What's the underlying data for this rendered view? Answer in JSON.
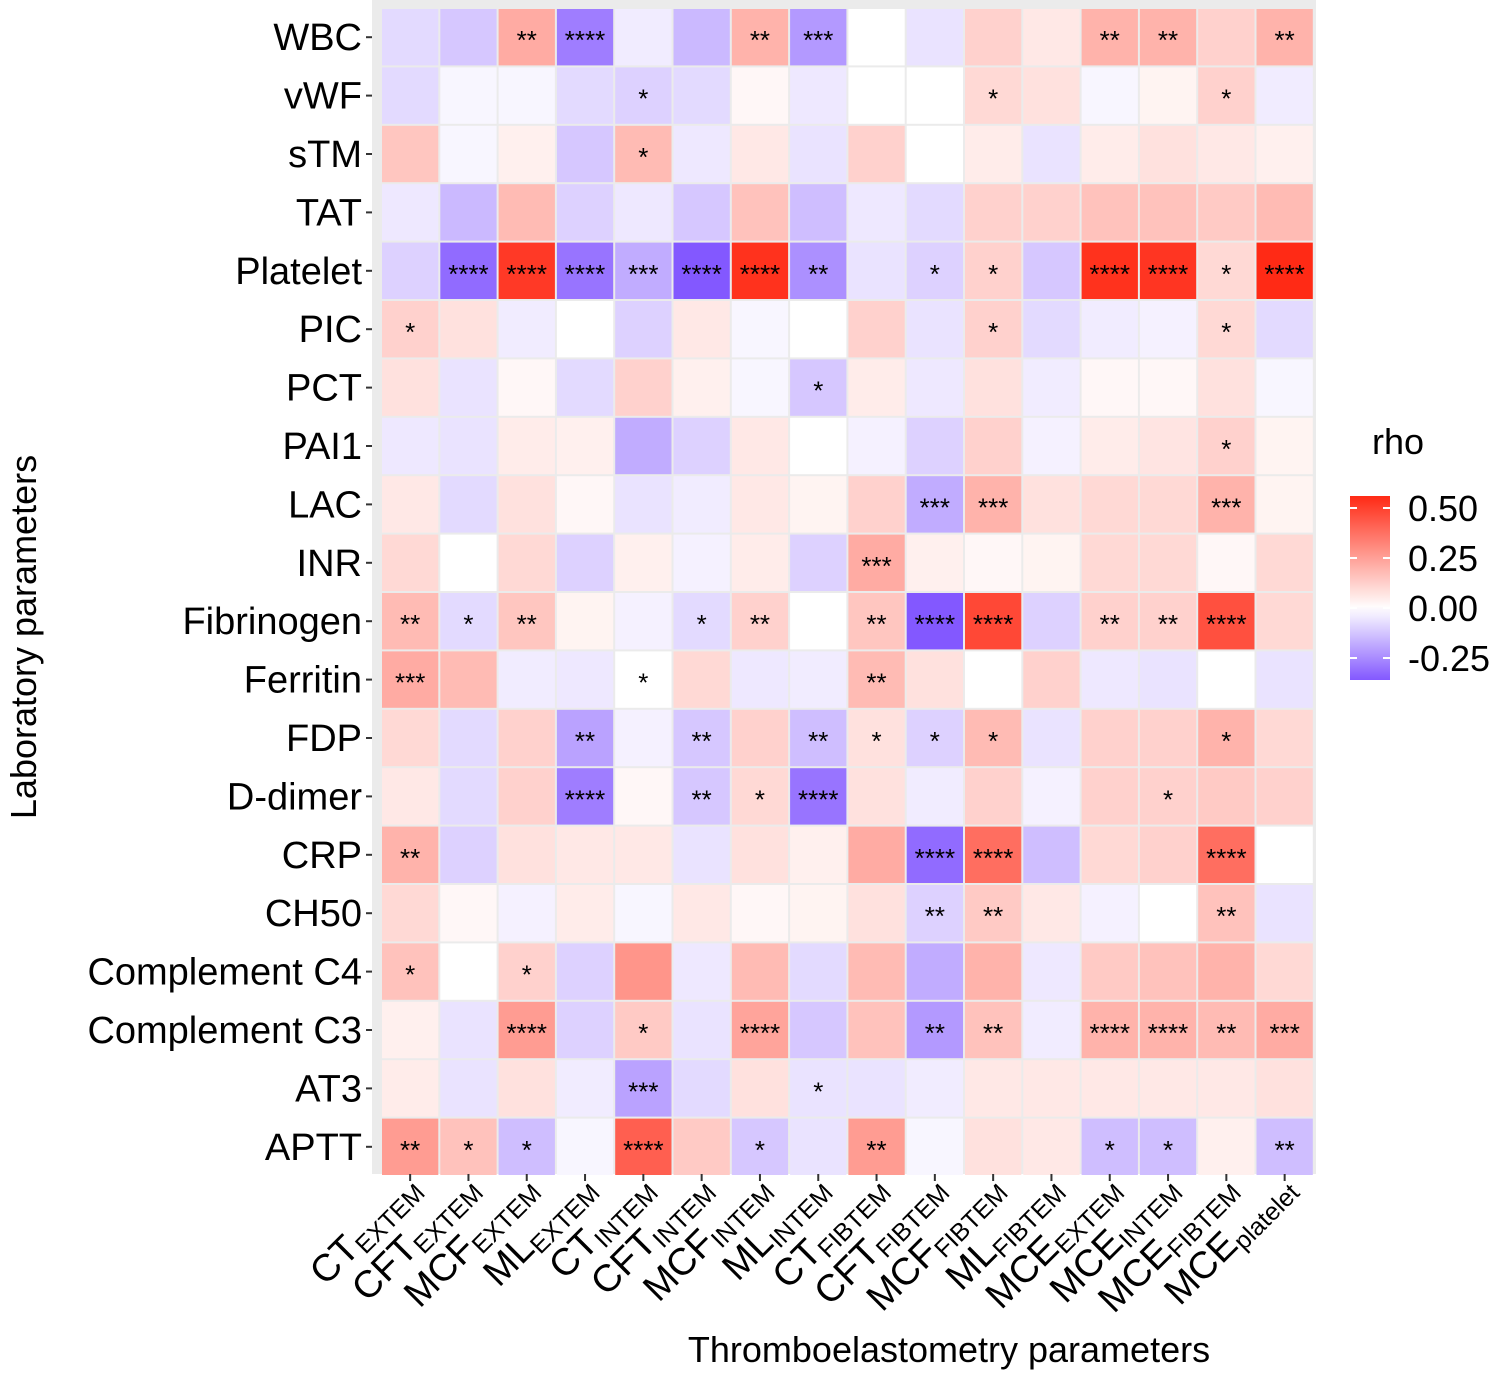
{
  "chart_data": {
    "type": "heatmap",
    "xlabel": "Thromboelastometry parameters",
    "ylabel": "Laboratory parameters",
    "legend": {
      "title": "rho",
      "breaks": [
        0.5,
        0.25,
        0.0,
        -0.25
      ],
      "labels": [
        "0.50",
        "0.25",
        "0.00",
        "-0.25"
      ],
      "limits": [
        -0.36,
        0.56
      ],
      "low_color": "#8358FF",
      "mid_color": "#FFFFFF",
      "high_color": "#FF2A15",
      "position": "right"
    },
    "columns": [
      {
        "main": "CT",
        "sub": "EXTEM"
      },
      {
        "main": "CFT",
        "sub": "EXTEM"
      },
      {
        "main": "MCF",
        "sub": "EXTEM"
      },
      {
        "main": "ML",
        "sub": "EXTEM"
      },
      {
        "main": "CT",
        "sub": "INTEM"
      },
      {
        "main": "CFT",
        "sub": "INTEM"
      },
      {
        "main": "MCF",
        "sub": "INTEM"
      },
      {
        "main": "ML",
        "sub": "INTEM"
      },
      {
        "main": "CT",
        "sub": "FIBTEM"
      },
      {
        "main": "CFT",
        "sub": "FIBTEM"
      },
      {
        "main": "MCF",
        "sub": "FIBTEM"
      },
      {
        "main": "ML",
        "sub": "FIBTEM"
      },
      {
        "main": "MCE",
        "sub": "EXTEM"
      },
      {
        "main": "MCE",
        "sub": "INTEM"
      },
      {
        "main": "MCE",
        "sub": "FIBTEM"
      },
      {
        "main": "MCE",
        "sub": "platelet"
      }
    ],
    "rows": [
      {
        "label": "WBC",
        "values": [
          -0.08,
          -0.12,
          0.22,
          -0.28,
          -0.04,
          -0.15,
          0.2,
          -0.22,
          0.0,
          -0.06,
          0.12,
          0.06,
          0.2,
          0.2,
          0.12,
          0.2
        ],
        "sig": [
          "",
          "",
          "**",
          "****",
          "",
          "",
          "**",
          "***",
          "",
          "",
          "",
          "",
          "**",
          "**",
          "",
          "**"
        ]
      },
      {
        "label": "vWF",
        "values": [
          -0.08,
          -0.02,
          -0.02,
          -0.08,
          -0.1,
          -0.08,
          0.02,
          -0.05,
          0.0,
          0.0,
          0.1,
          0.08,
          -0.02,
          0.03,
          0.12,
          -0.04
        ]
      },
      {
        "label": "sTM",
        "values": [
          0.15,
          -0.02,
          0.04,
          -0.12,
          0.18,
          -0.05,
          0.06,
          -0.06,
          0.12,
          0.0,
          0.05,
          -0.06,
          0.05,
          0.08,
          0.06,
          0.04
        ]
      },
      {
        "label": "TAT",
        "values": [
          -0.05,
          -0.15,
          0.18,
          -0.1,
          -0.05,
          -0.12,
          0.16,
          -0.14,
          -0.05,
          -0.08,
          0.12,
          0.12,
          0.16,
          0.16,
          0.14,
          0.18
        ]
      },
      {
        "label": "Platelet",
        "values": [
          -0.1,
          -0.32,
          0.52,
          -0.3,
          -0.18,
          -0.36,
          0.54,
          -0.24,
          -0.06,
          -0.1,
          0.12,
          -0.12,
          0.54,
          0.53,
          0.1,
          0.56
        ]
      },
      {
        "label": "PIC",
        "values": [
          0.12,
          0.08,
          -0.04,
          0.0,
          -0.1,
          0.06,
          -0.02,
          0.0,
          0.12,
          -0.06,
          0.12,
          -0.08,
          -0.04,
          -0.03,
          0.1,
          -0.08
        ]
      },
      {
        "label": "PCT",
        "values": [
          0.08,
          -0.06,
          0.02,
          -0.08,
          0.12,
          0.04,
          -0.02,
          -0.12,
          0.05,
          -0.05,
          0.08,
          -0.04,
          0.02,
          0.02,
          0.08,
          -0.02
        ]
      },
      {
        "label": "PAI1",
        "values": [
          -0.05,
          -0.06,
          0.05,
          0.04,
          -0.18,
          -0.1,
          0.06,
          0.0,
          -0.03,
          -0.1,
          0.12,
          -0.03,
          0.05,
          0.07,
          0.12,
          0.03
        ]
      },
      {
        "label": "LAC",
        "values": [
          0.06,
          -0.08,
          0.08,
          0.02,
          -0.06,
          -0.04,
          0.06,
          0.03,
          0.12,
          -0.18,
          0.2,
          0.08,
          0.1,
          0.1,
          0.2,
          0.03
        ]
      },
      {
        "label": "INR",
        "values": [
          0.1,
          0.0,
          0.1,
          -0.1,
          0.04,
          -0.03,
          0.05,
          -0.1,
          0.22,
          0.04,
          0.02,
          0.03,
          0.1,
          0.1,
          0.02,
          0.1
        ]
      },
      {
        "label": "Fibrinogen",
        "values": [
          0.18,
          -0.08,
          0.15,
          0.03,
          -0.03,
          -0.08,
          0.12,
          0.0,
          0.15,
          -0.36,
          0.48,
          -0.1,
          0.12,
          0.12,
          0.46,
          0.1
        ]
      },
      {
        "label": "Ferritin",
        "values": [
          0.22,
          0.18,
          -0.04,
          -0.05,
          0.0,
          0.1,
          -0.05,
          -0.04,
          0.18,
          0.08,
          0.0,
          0.12,
          -0.05,
          -0.06,
          0.0,
          -0.06
        ]
      },
      {
        "label": "FDP",
        "values": [
          0.1,
          -0.08,
          0.12,
          -0.2,
          -0.03,
          -0.12,
          0.12,
          -0.14,
          0.08,
          -0.1,
          0.18,
          -0.06,
          0.12,
          0.12,
          0.2,
          0.1
        ]
      },
      {
        "label": "D-dimer",
        "values": [
          0.06,
          -0.08,
          0.12,
          -0.28,
          0.02,
          -0.12,
          0.1,
          -0.3,
          0.08,
          -0.04,
          0.12,
          -0.03,
          0.12,
          0.12,
          0.14,
          0.12
        ]
      },
      {
        "label": "CRP",
        "values": [
          0.2,
          -0.1,
          0.08,
          0.06,
          0.06,
          -0.06,
          0.08,
          0.04,
          0.22,
          -0.32,
          0.38,
          -0.14,
          0.1,
          0.12,
          0.38,
          0.0
        ]
      },
      {
        "label": "CH50",
        "values": [
          0.1,
          0.02,
          -0.03,
          0.05,
          -0.02,
          0.06,
          0.02,
          0.03,
          0.08,
          -0.1,
          0.14,
          0.06,
          -0.03,
          0.0,
          0.16,
          -0.06
        ]
      },
      {
        "label": "Complement C4",
        "values": [
          0.16,
          0.0,
          0.12,
          -0.1,
          0.28,
          -0.05,
          0.18,
          -0.08,
          0.18,
          -0.18,
          0.2,
          -0.05,
          0.14,
          0.16,
          0.2,
          0.1
        ]
      },
      {
        "label": "Complement C3",
        "values": [
          0.04,
          -0.06,
          0.26,
          -0.1,
          0.14,
          -0.06,
          0.24,
          -0.12,
          0.16,
          -0.22,
          0.16,
          -0.04,
          0.2,
          0.2,
          0.18,
          0.22
        ]
      },
      {
        "label": "AT3",
        "values": [
          0.05,
          -0.06,
          0.08,
          -0.04,
          -0.2,
          -0.08,
          0.08,
          -0.06,
          -0.06,
          -0.04,
          0.06,
          0.06,
          0.06,
          0.06,
          0.06,
          0.08
        ]
      },
      {
        "label": "APTT",
        "values": [
          0.26,
          0.16,
          -0.14,
          -0.02,
          0.42,
          0.14,
          -0.12,
          -0.06,
          0.26,
          -0.02,
          0.08,
          0.06,
          -0.14,
          -0.14,
          0.04,
          -0.14
        ]
      }
    ],
    "sig": [
      [
        "",
        "",
        "**",
        "****",
        "",
        "",
        "**",
        "***",
        "",
        "",
        "",
        "",
        "**",
        "**",
        "",
        "**"
      ],
      [
        "",
        "",
        "",
        "",
        "*",
        "",
        "",
        "",
        "",
        "",
        "*",
        "",
        "",
        "",
        "*",
        ""
      ],
      [
        "",
        "",
        "",
        "",
        "*",
        "",
        "",
        "",
        "",
        "",
        "",
        "",
        "",
        "",
        "",
        ""
      ],
      [
        "",
        "",
        "",
        "",
        "",
        "",
        "",
        "",
        "",
        "",
        "",
        "",
        "",
        "",
        "",
        ""
      ],
      [
        "",
        "****",
        "****",
        "****",
        "***",
        "****",
        "****",
        "**",
        "",
        "*",
        "*",
        "",
        "****",
        "****",
        "*",
        "****"
      ],
      [
        "*",
        "",
        "",
        "",
        "",
        "",
        "",
        "",
        "",
        "",
        "*",
        "",
        "",
        "",
        "*",
        ""
      ],
      [
        "",
        "",
        "",
        "",
        "",
        "",
        "",
        "*",
        "",
        "",
        "",
        "",
        "",
        "",
        "",
        ""
      ],
      [
        "",
        "",
        "",
        "",
        "",
        "",
        "",
        "",
        "",
        "",
        "",
        "",
        "",
        "",
        "*",
        ""
      ],
      [
        "",
        "",
        "",
        "",
        "",
        "",
        "",
        "",
        "",
        "***",
        "***",
        "",
        "",
        "",
        "***",
        ""
      ],
      [
        "",
        "",
        "",
        "",
        "",
        "",
        "",
        "",
        "***",
        "",
        "",
        "",
        "",
        "",
        "",
        ""
      ],
      [
        "**",
        "*",
        "**",
        "",
        "",
        "*",
        "**",
        "",
        "**",
        "****",
        "****",
        "",
        "**",
        "**",
        "****",
        ""
      ],
      [
        "***",
        "",
        "",
        "",
        "*",
        "",
        "",
        "",
        "**",
        "",
        "",
        "",
        "",
        "",
        "",
        ""
      ],
      [
        "",
        "",
        "",
        "**",
        "",
        "**",
        "",
        "**",
        "*",
        "*",
        "*",
        "",
        "",
        "",
        "*",
        ""
      ],
      [
        "",
        "",
        "",
        "****",
        "",
        "**",
        "*",
        "****",
        "",
        "",
        "",
        "",
        "",
        "*",
        "",
        ""
      ],
      [
        "**",
        "",
        "",
        "",
        "",
        "",
        "",
        "",
        "",
        "****",
        "****",
        "",
        "",
        "",
        "****",
        ""
      ],
      [
        "",
        "",
        "",
        "",
        "",
        "",
        "",
        "",
        "",
        "**",
        "**",
        "",
        "",
        "",
        "**",
        ""
      ],
      [
        "*",
        "",
        "*",
        "",
        "",
        "",
        "",
        "",
        "",
        "",
        "",
        "",
        "",
        "",
        "",
        ""
      ],
      [
        "",
        "",
        "****",
        "",
        "*",
        "",
        "****",
        "",
        "",
        "**",
        "**",
        "",
        "****",
        "****",
        "**",
        "***"
      ],
      [
        "",
        "",
        "",
        "",
        "***",
        "",
        "",
        "*",
        "",
        "",
        "",
        "",
        "",
        "",
        "",
        ""
      ],
      [
        "**",
        "*",
        "*",
        "",
        "****",
        "",
        "*",
        "",
        "**",
        "",
        "",
        "",
        "*",
        "*",
        "",
        "**"
      ]
    ]
  }
}
